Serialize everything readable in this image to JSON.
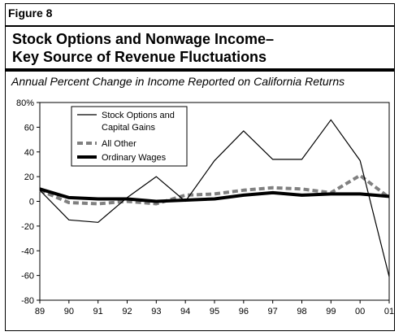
{
  "figure": {
    "label": "Figure 8",
    "title_line1": "Stock Options and Nonwage Income–",
    "title_line2": "Key Source of Revenue Fluctuations",
    "subtitle": "Annual Percent Change in Income Reported on California Returns"
  },
  "chart_data": {
    "type": "line",
    "title": "",
    "xlabel": "",
    "ylabel": "",
    "categories": [
      "89",
      "90",
      "91",
      "92",
      "93",
      "94",
      "95",
      "96",
      "97",
      "98",
      "99",
      "00",
      "01"
    ],
    "ylim": [
      -80,
      80
    ],
    "yticks": [
      80,
      60,
      40,
      20,
      0,
      -20,
      -40,
      -60,
      -80
    ],
    "ytick_labels": [
      "80%",
      "60",
      "40",
      "20",
      "0",
      "-20",
      "-40",
      "-60",
      "-80"
    ],
    "grid": false,
    "legend_position": "top-left",
    "series": [
      {
        "name": "Stock Options and Capital Gains",
        "values": [
          9,
          -15,
          -17,
          3,
          20,
          0,
          33,
          57,
          34,
          34,
          66,
          33,
          -61
        ],
        "color": "#000000",
        "style": "thin"
      },
      {
        "name": "All Other",
        "values": [
          9,
          -1,
          -2,
          0,
          -2,
          5,
          6,
          9,
          11,
          10,
          7,
          21,
          3
        ],
        "color": "#808080",
        "style": "dashed"
      },
      {
        "name": "Ordinary Wages",
        "values": [
          10,
          3,
          2,
          2,
          0,
          1,
          2,
          5,
          7,
          5,
          6,
          6,
          4
        ],
        "color": "#000000",
        "style": "thick"
      }
    ]
  }
}
